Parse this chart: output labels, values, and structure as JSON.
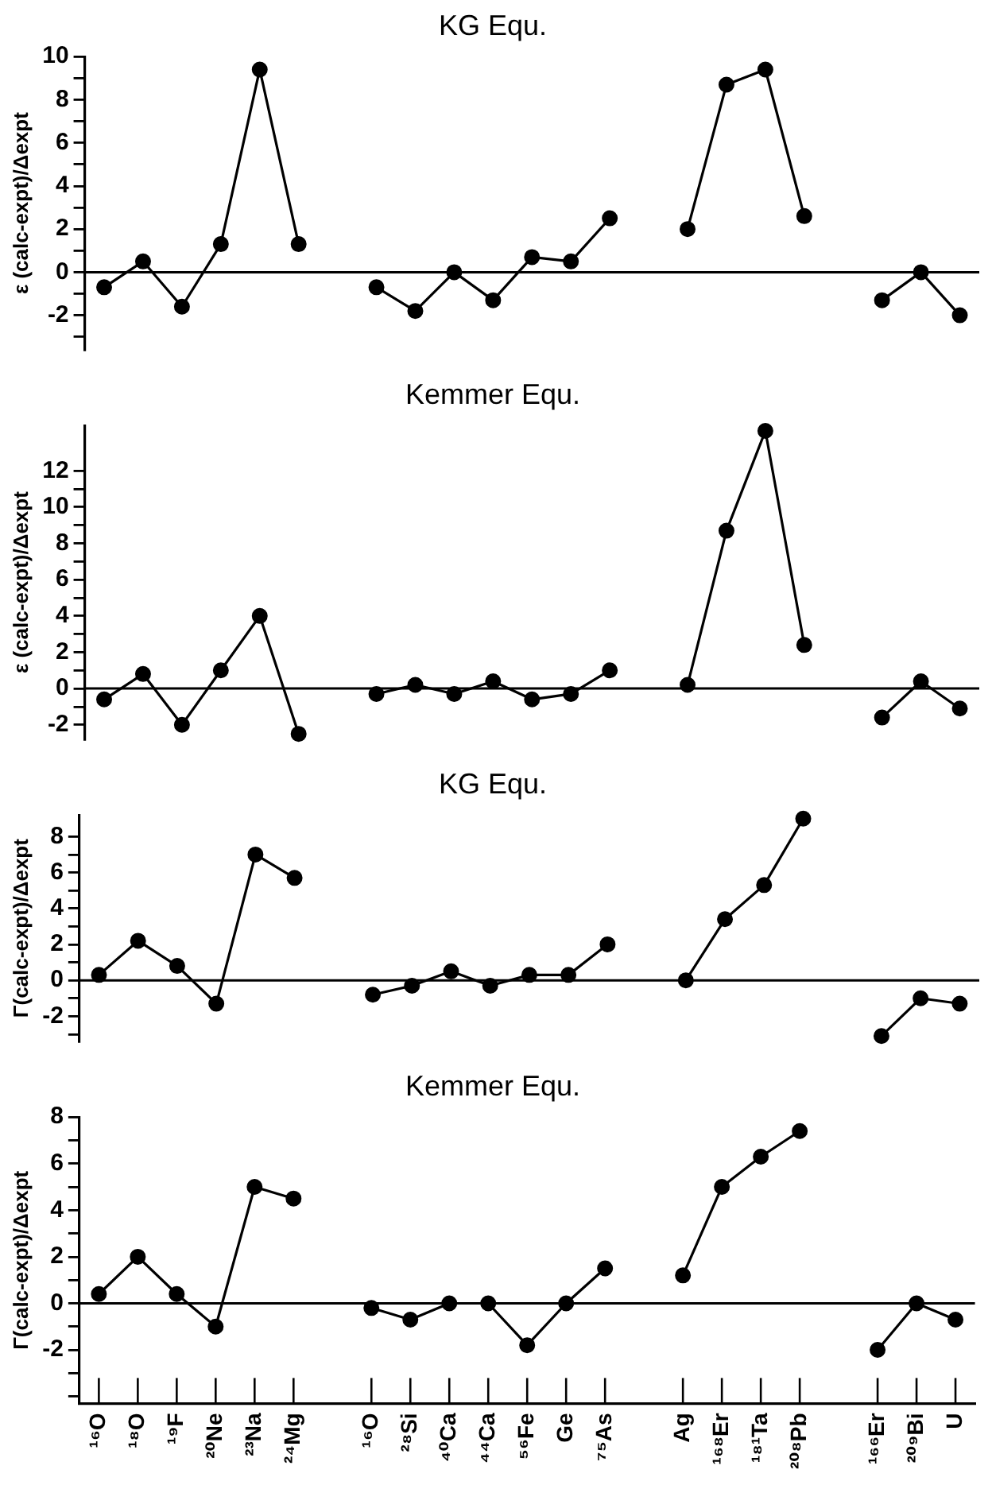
{
  "chart_data": [
    {
      "type": "line",
      "title": "KG Equ.",
      "ylabel": "ε (calc-expt)/Δexpt",
      "categories": [
        null,
        null,
        null,
        null,
        null,
        null,
        null,
        null,
        null,
        null,
        null,
        null,
        null,
        null,
        null,
        null,
        null,
        null,
        null,
        null,
        null,
        null,
        null
      ],
      "series": [
        {
          "color": "#000000",
          "values": [
            -0.7,
            0.5,
            -1.6,
            1.3,
            9.4,
            1.3,
            null,
            -0.7,
            -1.8,
            0,
            -1.3,
            0.7,
            0.5,
            2.5,
            null,
            2.0,
            8.7,
            9.4,
            2.6,
            null,
            -1.3,
            0,
            -2.0
          ]
        }
      ],
      "ylim": [
        -3.6,
        10
      ],
      "yticks": [
        {
          "value": -3,
          "label": null
        },
        -2,
        {
          "value": -1,
          "label": null
        },
        0,
        {
          "value": 1,
          "label": null
        },
        2,
        {
          "value": 3,
          "label": null
        },
        4,
        {
          "value": 5,
          "label": null
        },
        6,
        {
          "value": 7,
          "label": null
        },
        8,
        {
          "value": 9,
          "label": null
        },
        10
      ],
      "ref_lines": [
        {
          "axis": "y",
          "value": 0,
          "color": "#000000"
        }
      ],
      "marker": "circle",
      "tick_labels": "y"
    },
    {
      "type": "line",
      "title": "Kemmer Equ.",
      "ylabel": "ε (calc-expt)/Δexpt",
      "categories": [
        null,
        null,
        null,
        null,
        null,
        null,
        null,
        null,
        null,
        null,
        null,
        null,
        null,
        null,
        null,
        null,
        null,
        null,
        null,
        null,
        null,
        null,
        null
      ],
      "series": [
        {
          "color": "#000000",
          "values": [
            -0.6,
            0.8,
            -2.0,
            1.0,
            4.0,
            -2.5,
            null,
            -0.3,
            0.2,
            -0.3,
            0.4,
            -0.6,
            -0.3,
            1.0,
            null,
            0.2,
            8.7,
            14.2,
            2.4,
            null,
            -1.6,
            0.4,
            -1.1
          ]
        }
      ],
      "ylim": [
        -2.8,
        14.5
      ],
      "yticks": [
        -2,
        {
          "value": -1,
          "label": null
        },
        0,
        {
          "value": 1,
          "label": null
        },
        2,
        {
          "value": 3,
          "label": null
        },
        4,
        {
          "value": 5,
          "label": null
        },
        6,
        {
          "value": 7,
          "label": null
        },
        8,
        {
          "value": 9,
          "label": null
        },
        10,
        {
          "value": 11,
          "label": null
        },
        12
      ],
      "ref_lines": [
        {
          "axis": "y",
          "value": 0,
          "color": "#000000"
        }
      ],
      "marker": "circle",
      "tick_labels": "y"
    },
    {
      "type": "line",
      "title": "KG Equ.",
      "ylabel": "Γ(calc-expt)/Δexpt",
      "categories": [
        null,
        null,
        null,
        null,
        null,
        null,
        null,
        null,
        null,
        null,
        null,
        null,
        null,
        null,
        null,
        null,
        null,
        null,
        null,
        null,
        null,
        null,
        null
      ],
      "series": [
        {
          "color": "#000000",
          "values": [
            0.3,
            2.2,
            0.8,
            -1.3,
            7.0,
            5.7,
            null,
            -0.8,
            -0.3,
            0.5,
            -0.3,
            0.3,
            0.3,
            2.0,
            null,
            0,
            3.4,
            5.3,
            9.0,
            null,
            -3.1,
            -1.0,
            -1.3
          ]
        }
      ],
      "ylim": [
        -3.4,
        9.2
      ],
      "yticks": [
        {
          "value": -3,
          "label": null
        },
        -2,
        {
          "value": -1,
          "label": null
        },
        0,
        {
          "value": 1,
          "label": null
        },
        2,
        {
          "value": 3,
          "label": null
        },
        4,
        {
          "value": 5,
          "label": null
        },
        6,
        {
          "value": 7,
          "label": null
        },
        8
      ],
      "ref_lines": [
        {
          "axis": "y",
          "value": 0,
          "color": "#000000"
        }
      ],
      "marker": "circle",
      "tick_labels": "y"
    },
    {
      "type": "line",
      "title": "Kemmer Equ.",
      "ylabel": "Γ(calc-expt)/Δexpt",
      "categories": [
        "¹⁶O",
        "¹⁸O",
        "¹⁹F",
        "²⁰Ne",
        "²³Na",
        "²⁴Mg",
        null,
        "¹⁶O",
        "²⁸Si",
        "⁴⁰Ca",
        "⁴⁴Ca",
        "⁵⁶Fe",
        "Ge",
        "⁷⁵As",
        null,
        "Ag",
        "¹⁶⁸Er",
        "¹⁸¹Ta",
        "²⁰⁸Pb",
        null,
        "¹⁶⁶Er",
        "²⁰⁹Bi",
        "U"
      ],
      "series": [
        {
          "color": "#000000",
          "values": [
            0.4,
            2.0,
            0.4,
            -1.0,
            5.0,
            4.5,
            null,
            -0.2,
            -0.7,
            0,
            0,
            -1.8,
            0,
            1.5,
            null,
            1.2,
            5.0,
            6.3,
            7.4,
            null,
            -2.0,
            0,
            -0.7
          ]
        }
      ],
      "ylim": [
        -4.3,
        8
      ],
      "yticks": [
        {
          "value": -4,
          "label": null
        },
        {
          "value": -3,
          "label": null
        },
        -2,
        {
          "value": -1,
          "label": null
        },
        0,
        {
          "value": 1,
          "label": null
        },
        2,
        {
          "value": 3,
          "label": null
        },
        4,
        {
          "value": 5,
          "label": null
        },
        6,
        {
          "value": 7,
          "label": null
        },
        8
      ],
      "ref_lines": [
        {
          "axis": "y",
          "value": 0,
          "color": "#000000"
        }
      ],
      "marker": "circle"
    }
  ]
}
